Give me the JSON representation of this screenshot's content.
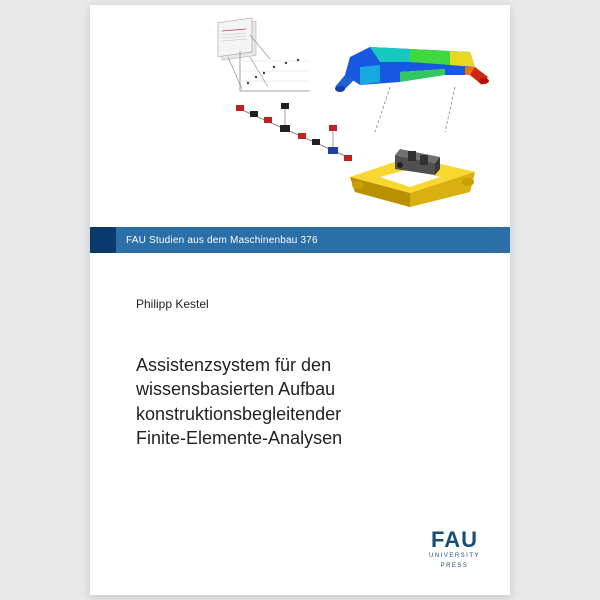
{
  "series": {
    "label": "FAU Studien aus dem Maschinenbau  376",
    "accent_color": "#0a3a6b",
    "bar_color": "#2a6fa8",
    "text_color": "#ffffff"
  },
  "author": "Philipp Kestel",
  "title": "Assistenzsystem für den\nwissensbasierten Aufbau\nkonstruktionsbegleitender\nFinite-Elemente-Analysen",
  "logo": {
    "main": "FAU",
    "sub1": "UNIVERSITY",
    "sub2": "PRESS",
    "color": "#1a4e7a"
  },
  "illustration": {
    "frame_upper": {
      "colors": [
        "#1040d0",
        "#10d0b0",
        "#40e040",
        "#f0e020",
        "#f06010",
        "#d01010"
      ]
    },
    "frame_lower": {
      "base_color": "#f0c820",
      "shadow_color": "#b89000",
      "assembly_color": "#606060"
    },
    "flow": {
      "doc_color": "#d8d8d8",
      "doc_accent": "#c04040",
      "node_red": "#c02020",
      "node_black": "#202020",
      "node_blue": "#2040a0",
      "line_color": "#888888"
    }
  }
}
